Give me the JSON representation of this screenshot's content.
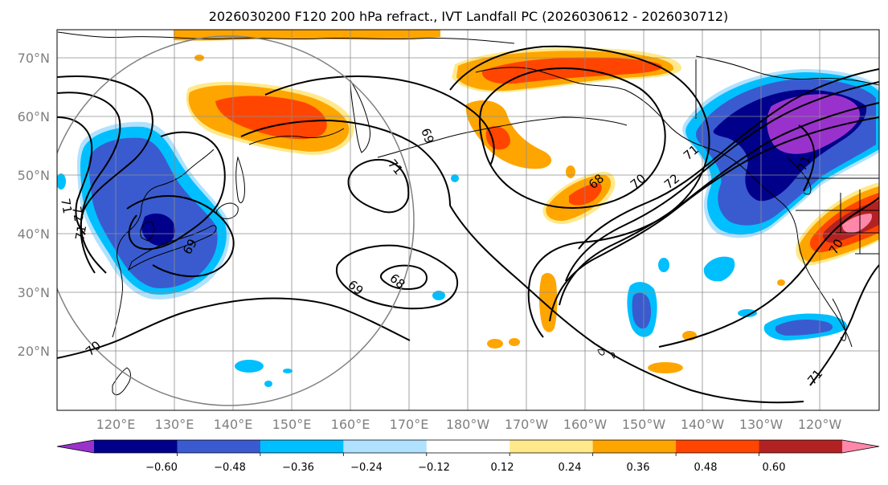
{
  "title": "2026030200 F120 200 hPa refract., IVT Landfall PC (2026030612 - 2026030712)",
  "lat_labels": [
    "70°N",
    "60°N",
    "50°N",
    "40°N",
    "30°N",
    "20°N"
  ],
  "lon_labels": [
    "120°E",
    "130°E",
    "140°E",
    "150°E",
    "160°E",
    "170°E",
    "180°W",
    "170°W",
    "160°W",
    "150°W",
    "140°W",
    "130°W",
    "120°W"
  ],
  "colorbar": {
    "tick_labels": [
      "−0.60",
      "−0.48",
      "−0.36",
      "−0.24",
      "−0.12",
      "0.12",
      "0.24",
      "0.36",
      "0.48",
      "0.60"
    ],
    "colors": [
      "#9932cc",
      "#00008b",
      "#3a5bcf",
      "#00bfff",
      "#b0e2ff",
      "#ffffff",
      "#ffe98a",
      "#ffa500",
      "#ff4500",
      "#b22222",
      "#ff88aa"
    ]
  },
  "contour_labels": [
    "69",
    "71",
    "68",
    "70",
    "72",
    "71",
    "71",
    "72",
    "71",
    "69",
    "69",
    "68",
    "70",
    "71",
    "70",
    "71"
  ],
  "colors": {
    "grid": "#8c8c8c",
    "tick_text": "#7f7f7f",
    "contour": "#000000",
    "circle": "#808080"
  }
}
